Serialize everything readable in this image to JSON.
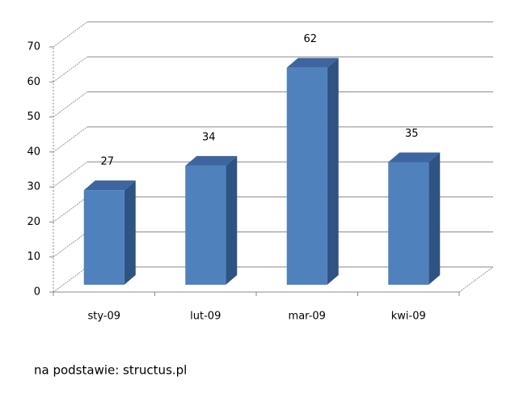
{
  "chart_data": {
    "type": "bar3d",
    "categories": [
      "sty-09",
      "lut-09",
      "mar-09",
      "kwi-09"
    ],
    "values": [
      27,
      34,
      62,
      35
    ],
    "color": "#4f81bd",
    "ylim": [
      0,
      70
    ],
    "yticks": [
      0,
      10,
      20,
      30,
      40,
      50,
      60,
      70
    ],
    "grid": true,
    "source": "na podstawie: structus.pl"
  }
}
